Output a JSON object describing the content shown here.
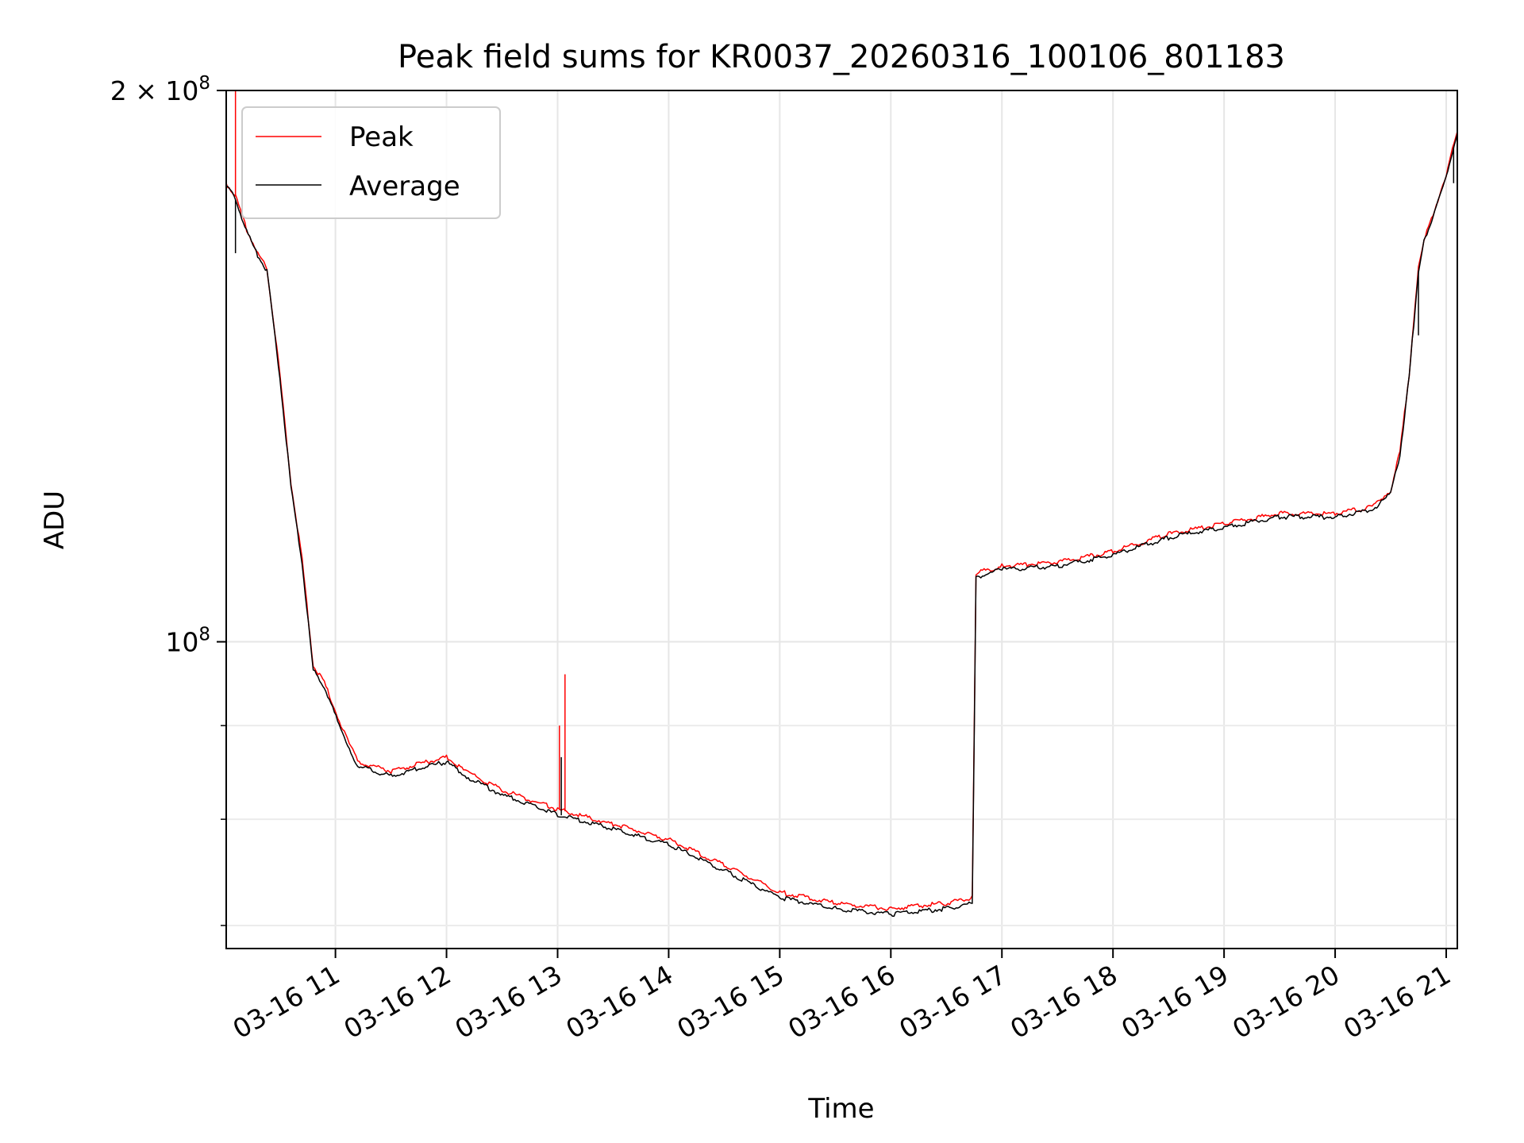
{
  "chart_data": {
    "type": "line",
    "title": "Peak field sums for KR0037_20260316_100106_801183",
    "xlabel": "Time",
    "ylabel": "ADU",
    "yscale": "log",
    "xlim": [
      "2026-03-16 10:01",
      "2026-03-16 21:06"
    ],
    "ylim": [
      68000000,
      200000000
    ],
    "x_ticks": [
      {
        "t": "2026-03-16 11:00",
        "label": "03-16 11"
      },
      {
        "t": "2026-03-16 12:00",
        "label": "03-16 12"
      },
      {
        "t": "2026-03-16 13:00",
        "label": "03-16 13"
      },
      {
        "t": "2026-03-16 14:00",
        "label": "03-16 14"
      },
      {
        "t": "2026-03-16 15:00",
        "label": "03-16 15"
      },
      {
        "t": "2026-03-16 16:00",
        "label": "03-16 16"
      },
      {
        "t": "2026-03-16 17:00",
        "label": "03-16 17"
      },
      {
        "t": "2026-03-16 18:00",
        "label": "03-16 18"
      },
      {
        "t": "2026-03-16 19:00",
        "label": "03-16 19"
      },
      {
        "t": "2026-03-16 20:00",
        "label": "03-16 20"
      },
      {
        "t": "2026-03-16 21:00",
        "label": "03-16 21"
      }
    ],
    "y_ticks": [
      {
        "value": 100000000,
        "base": "10",
        "exp": "8",
        "prefix": ""
      },
      {
        "value": 200000000,
        "base": "10",
        "exp": "8",
        "prefix": "2 × "
      }
    ],
    "y_minor_ticks": [
      70000000,
      80000000,
      90000000
    ],
    "grid": true,
    "legend": "upper-left",
    "series": [
      {
        "name": "Peak",
        "color": "#ff0000",
        "x": [
          "2026-03-16 10:01",
          "2026-03-16 10:06",
          "2026-03-16 10:12",
          "2026-03-16 10:18",
          "2026-03-16 10:23",
          "2026-03-16 10:30",
          "2026-03-16 10:36",
          "2026-03-16 10:42",
          "2026-03-16 10:48",
          "2026-03-16 10:54",
          "2026-03-16 11:03",
          "2026-03-16 11:12",
          "2026-03-16 11:30",
          "2026-03-16 12:00",
          "2026-03-16 12:10",
          "2026-03-16 12:30",
          "2026-03-16 13:00",
          "2026-03-16 13:30",
          "2026-03-16 14:00",
          "2026-03-16 14:30",
          "2026-03-16 15:00",
          "2026-03-16 15:30",
          "2026-03-16 16:00",
          "2026-03-16 16:30",
          "2026-03-16 16:44",
          "2026-03-16 16:46",
          "2026-03-16 17:00",
          "2026-03-16 17:30",
          "2026-03-16 18:00",
          "2026-03-16 18:30",
          "2026-03-16 19:00",
          "2026-03-16 19:30",
          "2026-03-16 20:00",
          "2026-03-16 20:20",
          "2026-03-16 20:30",
          "2026-03-16 20:35",
          "2026-03-16 20:40",
          "2026-03-16 20:45",
          "2026-03-16 20:48",
          "2026-03-16 20:52",
          "2026-03-16 21:00",
          "2026-03-16 21:06"
        ],
        "values": [
          178000000,
          175000000,
          168000000,
          163000000,
          160000000,
          140000000,
          122000000,
          111000000,
          97000000,
          95000000,
          90000000,
          86000000,
          85000000,
          86500000,
          85000000,
          83000000,
          81000000,
          79500000,
          78000000,
          75500000,
          73000000,
          72000000,
          71500000,
          72000000,
          72500000,
          109000000,
          110000000,
          110500000,
          112000000,
          114500000,
          116000000,
          117500000,
          117500000,
          118500000,
          121000000,
          127000000,
          140000000,
          160000000,
          166000000,
          170000000,
          180000000,
          190000000
        ]
      },
      {
        "name": "Average",
        "color": "#000000",
        "x": [
          "2026-03-16 10:01",
          "2026-03-16 10:06",
          "2026-03-16 10:12",
          "2026-03-16 10:18",
          "2026-03-16 10:23",
          "2026-03-16 10:30",
          "2026-03-16 10:36",
          "2026-03-16 10:42",
          "2026-03-16 10:48",
          "2026-03-16 10:54",
          "2026-03-16 11:03",
          "2026-03-16 11:12",
          "2026-03-16 11:30",
          "2026-03-16 12:00",
          "2026-03-16 12:10",
          "2026-03-16 12:30",
          "2026-03-16 13:00",
          "2026-03-16 13:30",
          "2026-03-16 14:00",
          "2026-03-16 14:30",
          "2026-03-16 15:00",
          "2026-03-16 15:30",
          "2026-03-16 16:00",
          "2026-03-16 16:30",
          "2026-03-16 16:44",
          "2026-03-16 16:46",
          "2026-03-16 17:00",
          "2026-03-16 17:30",
          "2026-03-16 18:00",
          "2026-03-16 18:30",
          "2026-03-16 19:00",
          "2026-03-16 19:30",
          "2026-03-16 20:00",
          "2026-03-16 20:20",
          "2026-03-16 20:30",
          "2026-03-16 20:35",
          "2026-03-16 20:40",
          "2026-03-16 20:45",
          "2026-03-16 20:48",
          "2026-03-16 20:52",
          "2026-03-16 21:00",
          "2026-03-16 21:06"
        ],
        "values": [
          177500000,
          174500000,
          167500000,
          162500000,
          159500000,
          139500000,
          121500000,
          110500000,
          96500000,
          94500000,
          89500000,
          85500000,
          84500000,
          86000000,
          84500000,
          82500000,
          80500000,
          79000000,
          77500000,
          75000000,
          72500000,
          71500000,
          71000000,
          71500000,
          72000000,
          108500000,
          109500000,
          110000000,
          111500000,
          114000000,
          115500000,
          117000000,
          117000000,
          118000000,
          120500000,
          126500000,
          139500000,
          159500000,
          165500000,
          169500000,
          179500000,
          189500000
        ]
      }
    ],
    "spikes": [
      {
        "series": "Peak",
        "t": "2026-03-16 10:06",
        "value": 200000000
      },
      {
        "series": "Average",
        "t": "2026-03-16 10:06",
        "value": 163000000
      },
      {
        "series": "Peak",
        "t": "2026-03-16 13:01",
        "value": 90000000
      },
      {
        "series": "Peak",
        "t": "2026-03-16 13:04",
        "value": 96000000
      },
      {
        "series": "Average",
        "t": "2026-03-16 13:02",
        "value": 86500000
      },
      {
        "series": "Average",
        "t": "2026-03-16 20:45",
        "value": 147000000
      },
      {
        "series": "Average",
        "t": "2026-03-16 21:04",
        "value": 178000000
      }
    ]
  }
}
